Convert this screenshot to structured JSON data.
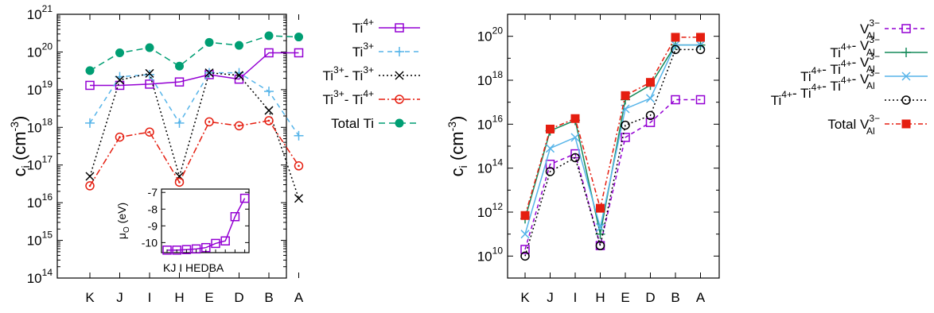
{
  "colors": {
    "purple": "#9400d3",
    "blue": "#56b4e9",
    "black": "#000000",
    "red": "#e51e10",
    "green": "#009e73",
    "darkgreen": "#158a5a"
  },
  "chart_data": [
    {
      "type": "line",
      "ylabel_main": "c",
      "ylabel_sub": "i",
      "ylabel_unit": "(cm",
      "ylabel_unit_exp": "-3",
      "ylabel_close": ")",
      "yscale": "log",
      "ylim": [
        100000000000000.0,
        1e+21
      ],
      "ytick_exponents": [
        14,
        15,
        16,
        17,
        18,
        19,
        20,
        21
      ],
      "categories": [
        "K",
        "J",
        "I",
        "H",
        "E",
        "D",
        "B",
        "A"
      ],
      "series": [
        {
          "name": "Ti",
          "sup": "4+",
          "color": "purple",
          "dash": "",
          "marker": "square-open",
          "values": [
            1.3e+19,
            1.3e+19,
            1.4e+19,
            1.6e+19,
            2.5e+19,
            1.9e+19,
            9.5e+19,
            9.5e+19
          ]
        },
        {
          "name": "Ti",
          "sup": "3+",
          "color": "blue",
          "dash": "6,5",
          "marker": "plus",
          "values": [
            1.3e+18,
            2.2e+19,
            2.5e+19,
            1.3e+18,
            2.8e+19,
            2.8e+19,
            9e+18,
            6e+17
          ]
        },
        {
          "name": "Ti",
          "sup": "3+",
          "name2": "- Ti",
          "sup2": "3+",
          "color": "black",
          "dash": "2,3",
          "marker": "cross",
          "values": [
            5e+16,
            1.8e+19,
            2.7e+19,
            5e+16,
            2.8e+19,
            2.4e+19,
            2.8e+18,
            1.3e+16
          ]
        },
        {
          "name": "Ti",
          "sup": "3+",
          "name2": "- Ti",
          "sup2": "4+",
          "color": "red",
          "dash": "8,3,2,3",
          "marker": "circle-dot",
          "values": [
            2.8e+16,
            5.5e+17,
            7.5e+17,
            3.5e+16,
            1.4e+18,
            1.1e+18,
            1.5e+18,
            9.5e+16
          ]
        },
        {
          "name": "Total Ti",
          "color": "green",
          "dash": "8,5",
          "marker": "circle-filled",
          "values": [
            3.2e+19,
            9.5e+19,
            1.3e+20,
            4.2e+19,
            1.8e+20,
            1.5e+20,
            2.7e+20,
            2.5e+20
          ]
        }
      ],
      "inset": {
        "ylabel_main": "μ",
        "ylabel_sub": "O",
        "ylabel_unit": "(eV)",
        "ylim": [
          -10.6,
          -6.8
        ],
        "yticks": [
          -10,
          -9,
          -8,
          -7
        ],
        "categories": [
          "K",
          "J",
          "I",
          "H",
          "E",
          "D",
          "B",
          "A"
        ],
        "xlabel_text": "KJ I HEDBA",
        "values": [
          -10.45,
          -10.45,
          -10.42,
          -10.38,
          -10.3,
          -10.05,
          -9.9,
          -8.45,
          -7.35
        ],
        "x_positions": [
          0,
          1,
          2,
          3,
          4,
          5,
          6,
          7,
          8
        ]
      }
    },
    {
      "type": "line",
      "ylabel_main": "c",
      "ylabel_sub": "i",
      "ylabel_unit": "(cm",
      "ylabel_unit_exp": "-3",
      "ylabel_close": ")",
      "yscale": "log",
      "ylim": [
        1000000000.0,
        1e+21
      ],
      "ytick_exponents": [
        10,
        12,
        14,
        16,
        18,
        20
      ],
      "categories": [
        "K",
        "J",
        "I",
        "H",
        "E",
        "D",
        "B",
        "A"
      ],
      "series": [
        {
          "parts": [
            [
              "V",
              "3−",
              "Al"
            ]
          ],
          "prefix": "",
          "color": "purple",
          "dash": "5,4",
          "marker": "square-open",
          "values": [
            20000000000.0,
            150000000000000.0,
            450000000000000.0,
            30000000000.0,
            2500000000000000.0,
            1.2e+16,
            1.3e+17,
            1.3e+17
          ]
        },
        {
          "parts": [
            [
              "Ti",
              "4+",
              ""
            ],
            [
              "- V",
              "3−",
              "Al"
            ]
          ],
          "color": "darkgreen",
          "dash": "",
          "marker": "plus",
          "values": [
            500000000000.0,
            5000000000000000.0,
            1.5e+16,
            100000000000.0,
            1.3e+17,
            6e+17,
            4e+19,
            4e+19
          ]
        },
        {
          "parts": [
            [
              "Ti",
              "4+",
              ""
            ],
            [
              "- Ti",
              "4+",
              ""
            ],
            [
              "- V",
              "3−",
              "Al"
            ]
          ],
          "color": "blue",
          "dash": "",
          "marker": "cross",
          "values": [
            100000000000.0,
            800000000000000.0,
            2500000000000000.0,
            200000000000.0,
            5e+16,
            1.5e+17,
            4e+19,
            4e+19
          ]
        },
        {
          "parts": [
            [
              "Ti",
              "4+",
              ""
            ],
            [
              "- Ti",
              "4+",
              ""
            ],
            [
              "- Ti",
              "4+",
              ""
            ],
            [
              "- V",
              "3−",
              "Al"
            ]
          ],
          "color": "black",
          "dash": "2,3",
          "marker": "circle-open",
          "values": [
            10000000000.0,
            70000000000000.0,
            300000000000000.0,
            30000000000.0,
            9000000000000000.0,
            2.5e+16,
            2.5e+19,
            2.5e+19
          ]
        },
        {
          "parts": [
            [
              "Total V",
              "3−",
              "Al"
            ]
          ],
          "color": "red",
          "dash": "6,3,2,3",
          "marker": "square-filled",
          "values": [
            700000000000.0,
            6000000000000000.0,
            1.8e+16,
            1500000000000.0,
            2e+17,
            8e+17,
            9e+19,
            9e+19
          ]
        }
      ]
    }
  ]
}
